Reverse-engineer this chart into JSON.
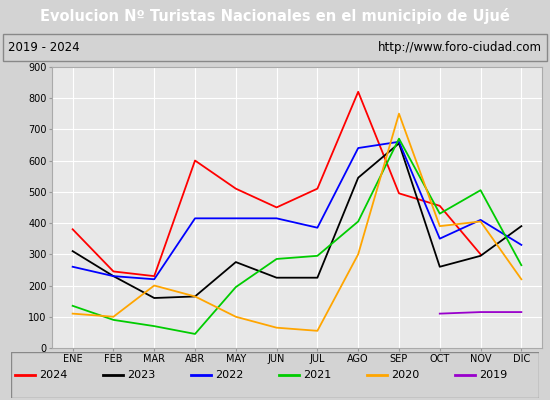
{
  "title": "Evolucion Nº Turistas Nacionales en el municipio de Ujué",
  "subtitle_left": "2019 - 2024",
  "subtitle_right": "http://www.foro-ciudad.com",
  "months": [
    "ENE",
    "FEB",
    "MAR",
    "ABR",
    "MAY",
    "JUN",
    "JUL",
    "AGO",
    "SEP",
    "OCT",
    "NOV",
    "DIC"
  ],
  "series": {
    "2024": [
      380,
      245,
      230,
      600,
      510,
      450,
      510,
      820,
      495,
      455,
      300,
      null
    ],
    "2023": [
      310,
      230,
      160,
      165,
      275,
      225,
      225,
      545,
      655,
      260,
      295,
      390
    ],
    "2022": [
      260,
      230,
      220,
      415,
      415,
      415,
      385,
      640,
      660,
      350,
      410,
      330
    ],
    "2021": [
      135,
      90,
      70,
      45,
      195,
      285,
      295,
      405,
      670,
      430,
      505,
      265
    ],
    "2020": [
      110,
      100,
      200,
      165,
      100,
      65,
      55,
      300,
      750,
      390,
      405,
      220
    ],
    "2019": [
      null,
      null,
      null,
      null,
      null,
      null,
      null,
      null,
      null,
      110,
      115,
      115
    ]
  },
  "colors": {
    "2024": "#ff0000",
    "2023": "#000000",
    "2022": "#0000ff",
    "2021": "#00cc00",
    "2020": "#ffa500",
    "2019": "#9900cc"
  },
  "ylim": [
    0,
    900
  ],
  "yticks": [
    0,
    100,
    200,
    300,
    400,
    500,
    600,
    700,
    800,
    900
  ],
  "title_bg": "#4d9fd6",
  "title_color": "#ffffff",
  "plot_bg": "#e8e8e8",
  "grid_color": "#ffffff",
  "outer_bg": "#d3d3d3",
  "subtitle_bg": "#f0f0f0",
  "legend_bg": "#f0f0f0"
}
